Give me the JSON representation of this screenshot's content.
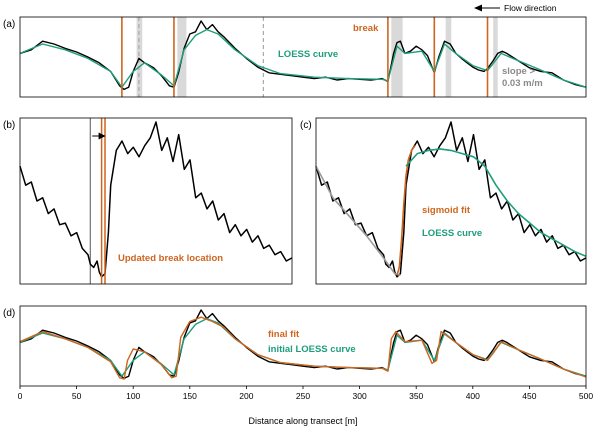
{
  "chart_data": [
    {
      "panel": "(a)",
      "type": "line",
      "annotations": {
        "flow_direction": "Flow direction",
        "break": "break",
        "loess": "LOESS curve",
        "slope_line1": "slope >",
        "slope_line2": "0.03 m/m"
      },
      "x_range": [
        0,
        500
      ],
      "y_range": [
        0,
        1
      ],
      "breaks": [
        90,
        136,
        325,
        366,
        413
      ],
      "dashed_lines": [
        105,
        215
      ],
      "shaded_regions": [
        [
          103,
          108
        ],
        [
          139,
          147
        ],
        [
          328,
          338
        ],
        [
          376,
          381
        ],
        [
          418,
          422
        ]
      ],
      "series": [
        {
          "color": "#000000",
          "x": [
            0,
            10,
            20,
            30,
            40,
            50,
            60,
            70,
            80,
            88,
            92,
            96,
            100,
            105,
            110,
            118,
            125,
            132,
            136,
            140,
            145,
            150,
            155,
            160,
            165,
            170,
            175,
            180,
            190,
            200,
            210,
            220,
            230,
            240,
            250,
            260,
            270,
            280,
            290,
            300,
            310,
            320,
            325,
            330,
            333,
            336,
            340,
            345,
            350,
            355,
            360,
            366,
            370,
            375,
            380,
            385,
            390,
            395,
            400,
            405,
            410,
            413,
            418,
            422,
            426,
            430,
            440,
            450,
            460,
            470,
            480,
            490,
            500
          ],
          "y": [
            0.55,
            0.6,
            0.72,
            0.68,
            0.62,
            0.57,
            0.5,
            0.42,
            0.3,
            0.1,
            0.05,
            0.08,
            0.3,
            0.48,
            0.42,
            0.35,
            0.24,
            0.1,
            0.08,
            0.28,
            0.62,
            0.82,
            0.85,
            1.0,
            0.88,
            0.95,
            0.85,
            0.78,
            0.62,
            0.48,
            0.36,
            0.28,
            0.26,
            0.24,
            0.22,
            0.2,
            0.22,
            0.18,
            0.2,
            0.19,
            0.18,
            0.2,
            0.16,
            0.55,
            0.7,
            0.72,
            0.55,
            0.58,
            0.65,
            0.6,
            0.52,
            0.28,
            0.5,
            0.72,
            0.68,
            0.55,
            0.48,
            0.42,
            0.36,
            0.32,
            0.3,
            0.34,
            0.45,
            0.55,
            0.58,
            0.55,
            0.45,
            0.35,
            0.3,
            0.28,
            0.18,
            0.12,
            0.08
          ]
        },
        {
          "color": "#1d9e7b",
          "x": [
            0,
            20,
            40,
            60,
            80,
            90,
            100,
            110,
            125,
            136,
            145,
            155,
            165,
            175,
            190,
            210,
            230,
            260,
            290,
            320,
            325,
            333,
            340,
            355,
            366,
            375,
            385,
            400,
            413,
            425,
            440,
            460,
            480,
            500
          ],
          "y": [
            0.55,
            0.68,
            0.6,
            0.48,
            0.3,
            0.08,
            0.3,
            0.42,
            0.25,
            0.1,
            0.6,
            0.8,
            0.88,
            0.82,
            0.6,
            0.38,
            0.27,
            0.22,
            0.2,
            0.19,
            0.17,
            0.65,
            0.55,
            0.58,
            0.3,
            0.68,
            0.55,
            0.38,
            0.31,
            0.55,
            0.45,
            0.32,
            0.18,
            0.08
          ]
        }
      ]
    },
    {
      "panel": "(b)",
      "type": "line",
      "annotations": {
        "updated_break": "Updated break location"
      },
      "x_range": [
        0,
        240
      ],
      "y_range": [
        0,
        1
      ],
      "break_old": 62,
      "breaks_new": [
        72,
        75
      ],
      "series": [
        {
          "color": "#000000",
          "x": [
            0,
            5,
            10,
            15,
            20,
            25,
            30,
            35,
            40,
            45,
            50,
            55,
            60,
            62,
            65,
            68,
            70,
            72,
            75,
            78,
            80,
            85,
            90,
            95,
            100,
            105,
            110,
            115,
            120,
            125,
            130,
            135,
            140,
            145,
            150,
            155,
            160,
            165,
            170,
            175,
            180,
            185,
            190,
            195,
            200,
            205,
            210,
            215,
            220,
            225,
            230,
            235,
            240
          ],
          "y": [
            0.72,
            0.6,
            0.62,
            0.5,
            0.52,
            0.42,
            0.45,
            0.35,
            0.36,
            0.28,
            0.3,
            0.2,
            0.16,
            0.1,
            0.08,
            0.12,
            0.05,
            0.02,
            0.04,
            0.3,
            0.6,
            0.82,
            0.88,
            0.8,
            0.84,
            0.78,
            0.85,
            0.9,
            1.0,
            0.82,
            0.9,
            0.75,
            0.92,
            0.7,
            0.76,
            0.52,
            0.55,
            0.45,
            0.5,
            0.38,
            0.42,
            0.3,
            0.35,
            0.28,
            0.32,
            0.24,
            0.28,
            0.2,
            0.22,
            0.16,
            0.18,
            0.12,
            0.14
          ]
        }
      ]
    },
    {
      "panel": "(c)",
      "type": "line",
      "annotations": {
        "sigmoid": "sigmoid fit",
        "loess": "LOESS curve"
      },
      "x_range": [
        0,
        240
      ],
      "y_range": [
        0,
        1
      ],
      "series": [
        {
          "color": "#000000",
          "x": [
            0,
            5,
            10,
            15,
            20,
            25,
            30,
            35,
            40,
            45,
            50,
            55,
            60,
            62,
            65,
            68,
            70,
            72,
            75,
            78,
            80,
            85,
            90,
            95,
            100,
            105,
            110,
            115,
            120,
            125,
            130,
            135,
            140,
            145,
            150,
            155,
            160,
            165,
            170,
            175,
            180,
            185,
            190,
            195,
            200,
            205,
            210,
            215,
            220,
            225,
            230,
            235,
            240
          ],
          "y": [
            0.72,
            0.6,
            0.62,
            0.5,
            0.52,
            0.42,
            0.45,
            0.35,
            0.36,
            0.28,
            0.3,
            0.2,
            0.16,
            0.1,
            0.08,
            0.12,
            0.05,
            0.02,
            0.04,
            0.3,
            0.6,
            0.82,
            0.88,
            0.8,
            0.84,
            0.78,
            0.85,
            0.9,
            1.0,
            0.82,
            0.9,
            0.75,
            0.92,
            0.7,
            0.76,
            0.52,
            0.55,
            0.45,
            0.5,
            0.38,
            0.42,
            0.3,
            0.35,
            0.28,
            0.32,
            0.24,
            0.28,
            0.2,
            0.22,
            0.16,
            0.18,
            0.12,
            0.14
          ]
        },
        {
          "color": "#9a9a9a",
          "x": [
            0,
            15,
            30,
            45,
            60,
            70,
            75
          ],
          "y": [
            0.72,
            0.52,
            0.4,
            0.28,
            0.14,
            0.04,
            0.03
          ]
        },
        {
          "color": "#d0651f",
          "x": [
            72,
            74,
            76,
            78,
            80,
            82,
            85,
            88
          ],
          "y": [
            0.03,
            0.08,
            0.25,
            0.48,
            0.66,
            0.76,
            0.82,
            0.85
          ]
        },
        {
          "color": "#1d9e7b",
          "x": [
            80,
            90,
            100,
            110,
            120,
            130,
            140,
            150,
            160,
            170,
            180,
            190,
            200,
            210,
            220,
            230,
            240
          ],
          "y": [
            0.72,
            0.8,
            0.82,
            0.83,
            0.82,
            0.8,
            0.78,
            0.72,
            0.6,
            0.5,
            0.42,
            0.36,
            0.3,
            0.26,
            0.22,
            0.18,
            0.15
          ]
        }
      ]
    },
    {
      "panel": "(d)",
      "type": "line",
      "annotations": {
        "final_fit": "final fit",
        "initial_loess": "initial LOESS curve"
      },
      "x_range": [
        0,
        500
      ],
      "y_range": [
        0,
        1
      ],
      "xlabel": "Distance along transect [m]",
      "xticks": [
        0,
        50,
        100,
        150,
        200,
        250,
        300,
        350,
        400,
        450,
        500
      ],
      "series": [
        {
          "color": "#000000",
          "x": [
            0,
            10,
            20,
            30,
            40,
            50,
            60,
            70,
            80,
            88,
            92,
            96,
            100,
            105,
            110,
            118,
            125,
            132,
            136,
            140,
            145,
            150,
            155,
            160,
            165,
            170,
            175,
            180,
            190,
            200,
            210,
            220,
            230,
            240,
            250,
            260,
            270,
            280,
            290,
            300,
            310,
            320,
            325,
            330,
            333,
            336,
            340,
            345,
            350,
            355,
            360,
            366,
            370,
            375,
            380,
            385,
            390,
            395,
            400,
            405,
            410,
            413,
            418,
            422,
            426,
            430,
            440,
            450,
            460,
            470,
            480,
            490,
            500
          ],
          "y": [
            0.55,
            0.6,
            0.72,
            0.68,
            0.62,
            0.57,
            0.5,
            0.42,
            0.3,
            0.1,
            0.05,
            0.08,
            0.3,
            0.48,
            0.42,
            0.35,
            0.24,
            0.1,
            0.08,
            0.28,
            0.62,
            0.82,
            0.85,
            1.0,
            0.88,
            0.95,
            0.85,
            0.78,
            0.62,
            0.48,
            0.36,
            0.28,
            0.26,
            0.24,
            0.22,
            0.2,
            0.22,
            0.18,
            0.2,
            0.19,
            0.18,
            0.2,
            0.16,
            0.55,
            0.7,
            0.72,
            0.55,
            0.58,
            0.65,
            0.6,
            0.52,
            0.28,
            0.5,
            0.72,
            0.68,
            0.55,
            0.48,
            0.42,
            0.36,
            0.32,
            0.3,
            0.34,
            0.45,
            0.55,
            0.58,
            0.55,
            0.45,
            0.35,
            0.3,
            0.28,
            0.18,
            0.12,
            0.08
          ]
        },
        {
          "color": "#1d9e7b",
          "x": [
            0,
            20,
            40,
            60,
            80,
            90,
            100,
            110,
            125,
            136,
            145,
            155,
            165,
            175,
            190,
            210,
            230,
            260,
            290,
            320,
            325,
            333,
            340,
            355,
            366,
            375,
            385,
            400,
            413,
            425,
            440,
            460,
            480,
            500
          ],
          "y": [
            0.55,
            0.68,
            0.6,
            0.48,
            0.3,
            0.08,
            0.3,
            0.42,
            0.25,
            0.1,
            0.6,
            0.8,
            0.88,
            0.82,
            0.6,
            0.38,
            0.27,
            0.22,
            0.2,
            0.19,
            0.17,
            0.65,
            0.55,
            0.58,
            0.3,
            0.68,
            0.55,
            0.38,
            0.31,
            0.55,
            0.45,
            0.32,
            0.18,
            0.08
          ]
        },
        {
          "color": "#d0651f",
          "x": [
            0,
            20,
            40,
            60,
            80,
            88,
            92,
            95,
            100,
            110,
            125,
            134,
            138,
            142,
            150,
            160,
            170,
            180,
            190,
            210,
            230,
            260,
            290,
            320,
            325,
            328,
            332,
            340,
            355,
            364,
            368,
            372,
            385,
            400,
            413,
            418,
            425,
            440,
            460,
            480,
            500
          ],
          "y": [
            0.56,
            0.7,
            0.6,
            0.48,
            0.28,
            0.06,
            0.04,
            0.3,
            0.46,
            0.42,
            0.24,
            0.06,
            0.08,
            0.62,
            0.84,
            0.9,
            0.84,
            0.76,
            0.6,
            0.38,
            0.27,
            0.22,
            0.2,
            0.19,
            0.15,
            0.6,
            0.7,
            0.56,
            0.58,
            0.26,
            0.3,
            0.7,
            0.55,
            0.38,
            0.3,
            0.4,
            0.56,
            0.45,
            0.32,
            0.18,
            0.07
          ]
        }
      ]
    }
  ]
}
